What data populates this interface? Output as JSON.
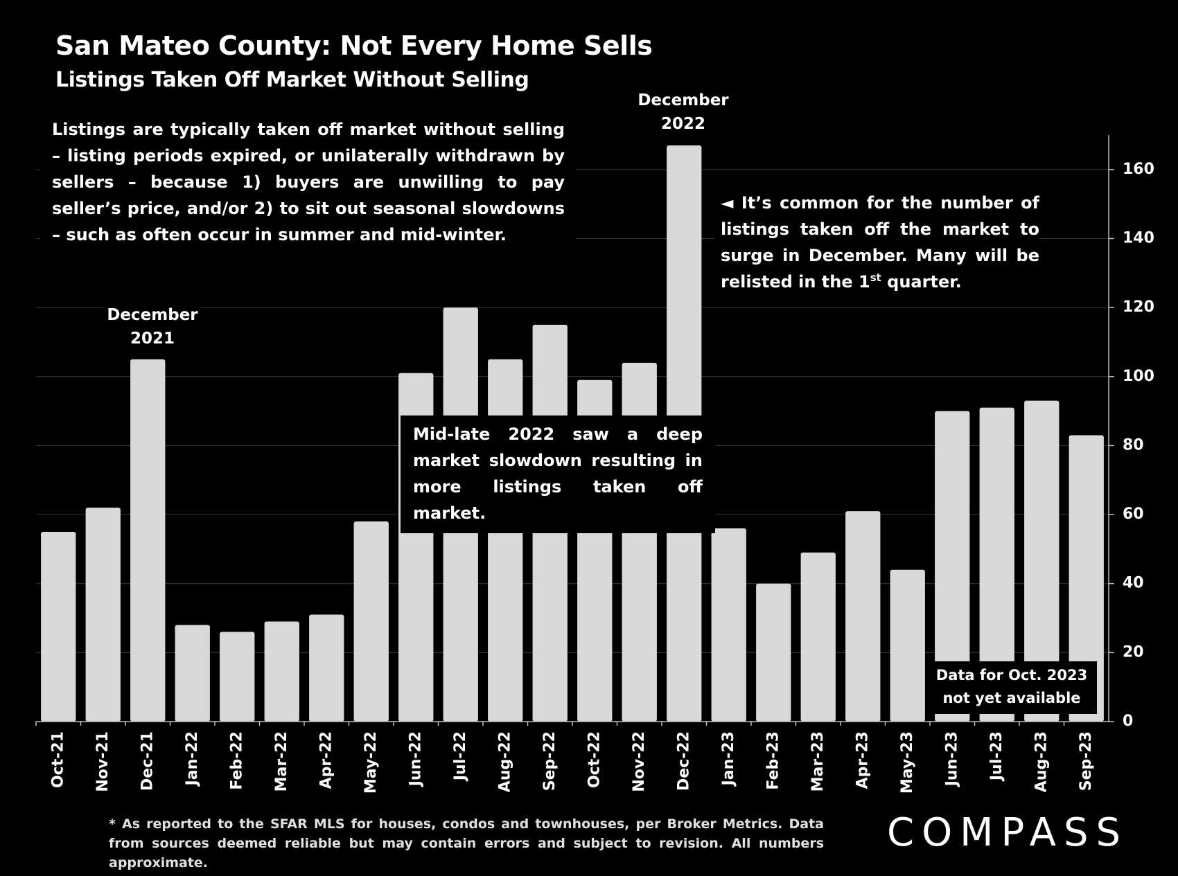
{
  "header": {
    "title": "San Mateo County: Not Every Home Sells",
    "subtitle": "Listings Taken Off Market Without Selling"
  },
  "annotations": {
    "left_note": "Listings are typically taken off market without selling – listing periods expired, or unilaterally withdrawn by sellers – because 1) buyers are unwilling to pay seller’s price, and/or 2) to sit out seasonal slowdowns – such as often occur in summer and mid-winter.",
    "right_note_a": "◄ It’s common for the number of listings taken off the market to surge in December. Many will be relisted in the 1",
    "right_note_sup": "st",
    "right_note_b": " quarter.",
    "mid_note": "Mid-late 2022 saw a deep market slowdown resulting in more listings taken off market.",
    "dec21_line1": "December",
    "dec21_line2": "2021",
    "dec22_line1": "December",
    "dec22_line2": "2022",
    "oct23_line1": "Data for Oct. 2023",
    "oct23_line2": "not yet available"
  },
  "footer": {
    "footnote": "* As reported to the SFAR MLS for houses, condos and townhouses, per Broker Metrics. Data from sources deemed reliable but may contain errors and subject to revision. All numbers approximate.",
    "logo": "COMPASS"
  },
  "colors": {
    "background": "#000000",
    "bar": "#d9d9d9",
    "grid": "#3a3a3a",
    "text": "#ffffff"
  },
  "chart_data": {
    "type": "bar",
    "title": "San Mateo County: Not Every Home Sells",
    "subtitle": "Listings Taken Off Market Without Selling",
    "categories": [
      "Oct-21",
      "Nov-21",
      "Dec-21",
      "Jan-22",
      "Feb-22",
      "Mar-22",
      "Apr-22",
      "May-22",
      "Jun-22",
      "Jul-22",
      "Aug-22",
      "Sep-22",
      "Oct-22",
      "Nov-22",
      "Dec-22",
      "Jan-23",
      "Feb-23",
      "Mar-23",
      "Apr-23",
      "May-23",
      "Jun-23",
      "Jul-23",
      "Aug-23",
      "Sep-23"
    ],
    "values": [
      55,
      62,
      105,
      28,
      26,
      29,
      31,
      58,
      101,
      120,
      105,
      115,
      99,
      104,
      167,
      56,
      40,
      49,
      61,
      44,
      90,
      91,
      93,
      83
    ],
    "ylim": [
      0,
      170
    ],
    "yticks": [
      0,
      20,
      40,
      60,
      80,
      100,
      120,
      140,
      160
    ],
    "y_axis_side": "right",
    "grid": true,
    "xlabel": "",
    "ylabel": ""
  }
}
